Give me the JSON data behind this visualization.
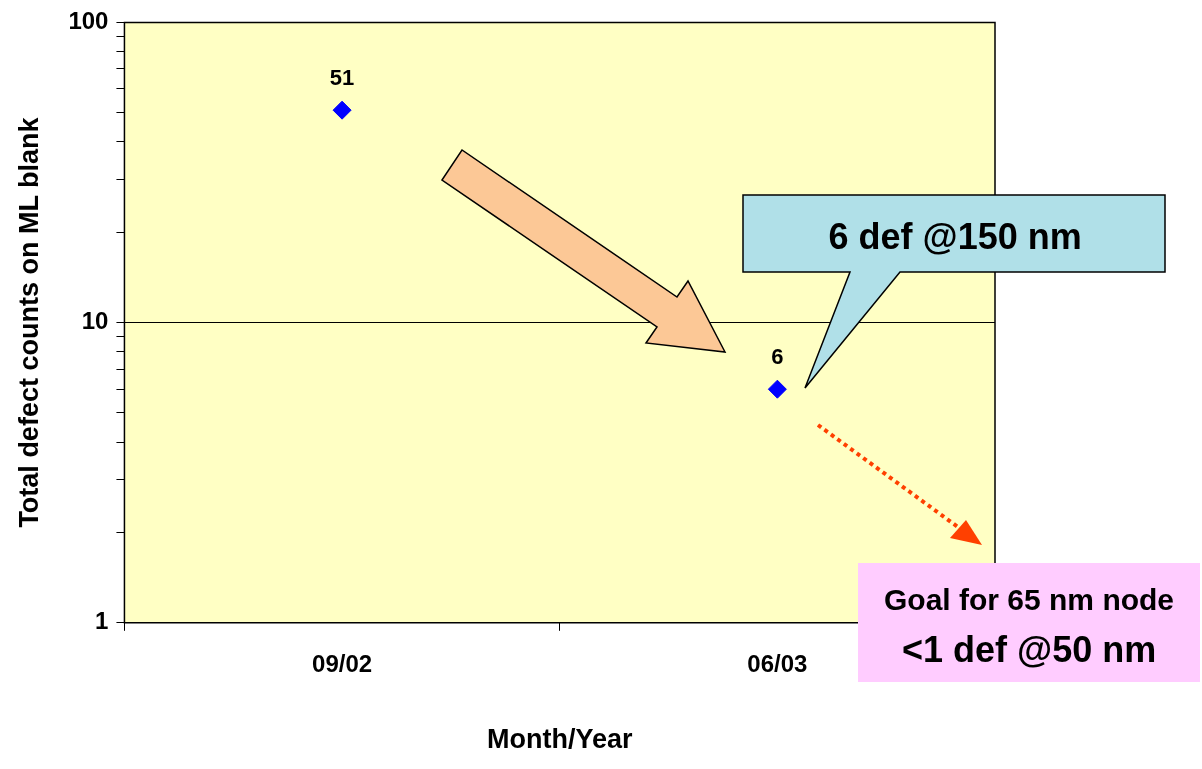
{
  "chart_data": {
    "type": "scatter",
    "categories": [
      "09/02",
      "06/03"
    ],
    "values": [
      51,
      6
    ],
    "color": "#0000ff",
    "marker": "diamond",
    "data_labels": true,
    "log": true,
    "grid": "y",
    "xlabel": "Month/Year",
    "ylabel": "Total defect counts on ML blank",
    "ylim": [
      1,
      100
    ],
    "yticks": [
      1,
      {
        "value": 2,
        "label": null
      },
      {
        "value": 3,
        "label": null
      },
      {
        "value": 4,
        "label": null
      },
      {
        "value": 5,
        "label": null
      },
      {
        "value": 6,
        "label": null
      },
      {
        "value": 7,
        "label": null
      },
      {
        "value": 8,
        "label": null
      },
      {
        "value": 9,
        "label": null
      },
      10,
      {
        "value": 20,
        "label": null
      },
      {
        "value": 30,
        "label": null
      },
      {
        "value": 40,
        "label": null
      },
      {
        "value": 50,
        "label": null
      },
      {
        "value": 60,
        "label": null
      },
      {
        "value": 70,
        "label": null
      },
      {
        "value": 80,
        "label": null
      },
      {
        "value": 90,
        "label": null
      },
      100
    ],
    "annotations": [
      "6 def @150 nm",
      "Goal for 65 nm node",
      "<1 def @50 nm"
    ]
  }
}
